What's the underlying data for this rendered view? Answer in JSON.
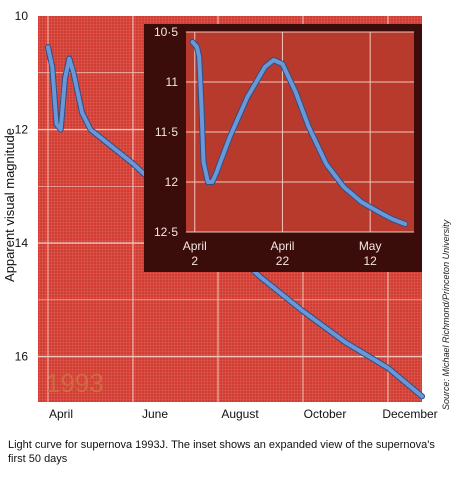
{
  "caption": "Light curve for supernova 1993J. The inset shows an expanded view of the supernova's first 50 days",
  "credit": "Source: Michael Richmond/Princeton University",
  "watermark": "1993",
  "colors": {
    "plot_bg": "#d23c32",
    "plot_fine_grid": "#e07a6c",
    "grid": "#f2c6be",
    "inset_bg": "#b73a2c",
    "inset_frame": "#3a0d0a",
    "curve": "#6a98d6",
    "curve_edge": "#2c4f8a",
    "watermark": "#d07045"
  },
  "chart_data": [
    {
      "type": "line",
      "ylabel": "Apparent visual magnitude",
      "xlabel": "",
      "x_tick_labels": [
        "April",
        "June",
        "August",
        "October",
        "December"
      ],
      "y_ticks": [
        "10",
        "12",
        "14",
        "16"
      ],
      "ylim": [
        10,
        16.8
      ],
      "y_inverted": true,
      "grid": true,
      "series": [
        {
          "values_x_month": [
            3.0,
            3.1,
            3.2,
            3.3,
            3.4,
            3.5,
            3.6,
            3.8,
            4.0,
            4.5,
            5.0,
            5.5,
            6.0,
            7.0,
            8.0,
            9.0,
            10.0,
            11.0,
            11.8
          ],
          "values_y_mag": [
            10.55,
            10.9,
            11.9,
            12.0,
            11.1,
            10.75,
            11.0,
            11.7,
            12.0,
            12.3,
            12.6,
            12.95,
            13.3,
            13.9,
            14.6,
            15.2,
            15.75,
            16.2,
            16.7
          ]
        }
      ]
    },
    {
      "type": "line",
      "title": "",
      "x_tick_labels": [
        [
          "April",
          "2"
        ],
        [
          "April",
          "22"
        ],
        [
          "May",
          "12"
        ]
      ],
      "y_ticks": [
        "10·5",
        "11",
        "11·5",
        "12",
        "12·5"
      ],
      "ylim": [
        10.5,
        12.5
      ],
      "y_inverted": true,
      "xlim_days": [
        -2,
        50
      ],
      "grid": true,
      "series": [
        {
          "day": [
            -0.5,
            0.5,
            1.0,
            1.5,
            2.0,
            3.0,
            4.0,
            5.0,
            6.0,
            8.0,
            10.0,
            12.0,
            14.0,
            16.0,
            18.0,
            20.0,
            23.0,
            26.0,
            30.0,
            34.0,
            38.0,
            42.0,
            45.0,
            48.0
          ],
          "mag": [
            10.6,
            10.65,
            10.75,
            11.2,
            11.8,
            12.0,
            12.0,
            11.9,
            11.78,
            11.55,
            11.35,
            11.15,
            11.0,
            10.85,
            10.78,
            10.82,
            11.1,
            11.45,
            11.82,
            12.05,
            12.2,
            12.3,
            12.37,
            12.42
          ]
        }
      ]
    }
  ]
}
